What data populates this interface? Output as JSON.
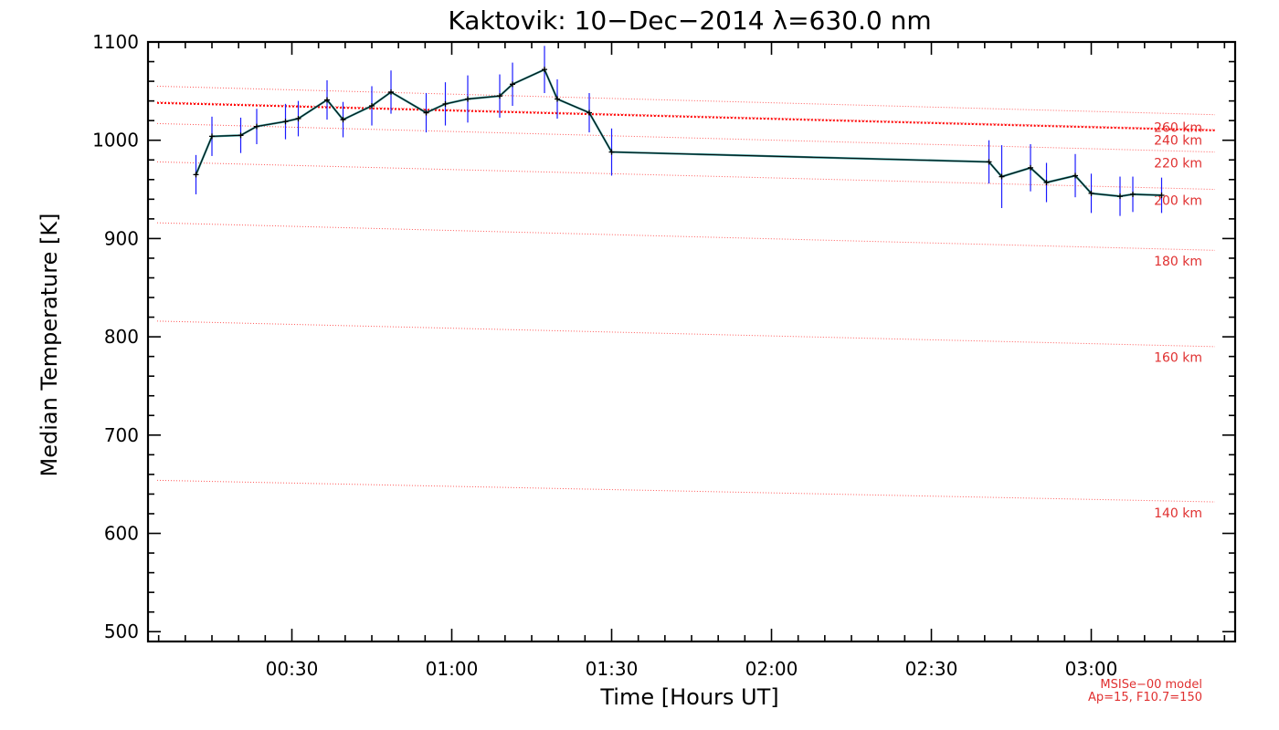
{
  "chart_data": {
    "type": "line",
    "title": "Kaktovik: 10−Dec−2014 λ=630.0 nm",
    "xlabel": "Time [Hours UT]",
    "ylabel": "Median Temperature [K]",
    "xlim": [
      0.05,
      3.45
    ],
    "ylim": [
      490,
      1100
    ],
    "x_ticks": [
      {
        "value": 0.5,
        "label": "00:30"
      },
      {
        "value": 1.0,
        "label": "01:00"
      },
      {
        "value": 1.5,
        "label": "01:30"
      },
      {
        "value": 2.0,
        "label": "02:00"
      },
      {
        "value": 2.5,
        "label": "02:30"
      },
      {
        "value": 3.0,
        "label": "03:00"
      }
    ],
    "y_ticks": [
      {
        "value": 500,
        "label": "500"
      },
      {
        "value": 600,
        "label": "600"
      },
      {
        "value": 700,
        "label": "700"
      },
      {
        "value": 800,
        "label": "800"
      },
      {
        "value": 900,
        "label": "900"
      },
      {
        "value": 1000,
        "label": "1000"
      },
      {
        "value": 1100,
        "label": "1100"
      }
    ],
    "series": [
      {
        "color": "#000000",
        "error_color": "#1a1aff",
        "fill_color": "#2a8a8a",
        "x": [
          0.2,
          0.25,
          0.34,
          0.39,
          0.48,
          0.52,
          0.61,
          0.66,
          0.75,
          0.81,
          0.92,
          0.98,
          1.05,
          1.15,
          1.19,
          1.29,
          1.33,
          1.43,
          1.5,
          2.68,
          2.72,
          2.81,
          2.86,
          2.95,
          3.0,
          3.09,
          3.13,
          3.22
        ],
        "y": [
          965,
          1004,
          1005,
          1014,
          1019,
          1022,
          1041,
          1021,
          1035,
          1049,
          1028,
          1037,
          1042,
          1045,
          1057,
          1072,
          1042,
          1028,
          988,
          978,
          963,
          972,
          957,
          964,
          946,
          943,
          945,
          944
        ],
        "error": [
          20,
          20,
          18,
          18,
          18,
          18,
          20,
          18,
          20,
          22,
          20,
          22,
          24,
          22,
          22,
          24,
          20,
          20,
          24,
          22,
          32,
          24,
          20,
          22,
          20,
          20,
          18,
          18
        ]
      }
    ],
    "reference_lines": [
      {
        "label": "140 km",
        "y_start": 654,
        "y_end": 632,
        "label_y": 621
      },
      {
        "label": "160 km",
        "y_start": 816,
        "y_end": 790,
        "label_y": 779
      },
      {
        "label": "180 km",
        "y_start": 916,
        "y_end": 888,
        "label_y": 877
      },
      {
        "label": "200 km",
        "y_start": 978,
        "y_end": 950,
        "label_y": 939
      },
      {
        "label": "220 km",
        "y_start": 1017,
        "y_end": 988,
        "label_y": 977
      },
      {
        "label": "240 km",
        "y_start": 1039,
        "y_end": 1011,
        "label_y": 1000
      },
      {
        "label": "260 km",
        "y_start": 1055,
        "y_end": 1026,
        "label_y": 1013
      }
    ],
    "model_line": {
      "y_start": 1038,
      "y_end": 1010,
      "color": "#ff0000"
    },
    "model_note": [
      "MSISe−00 model",
      "Ap=15, F10.7=150"
    ],
    "grid": false,
    "legend": "none"
  }
}
